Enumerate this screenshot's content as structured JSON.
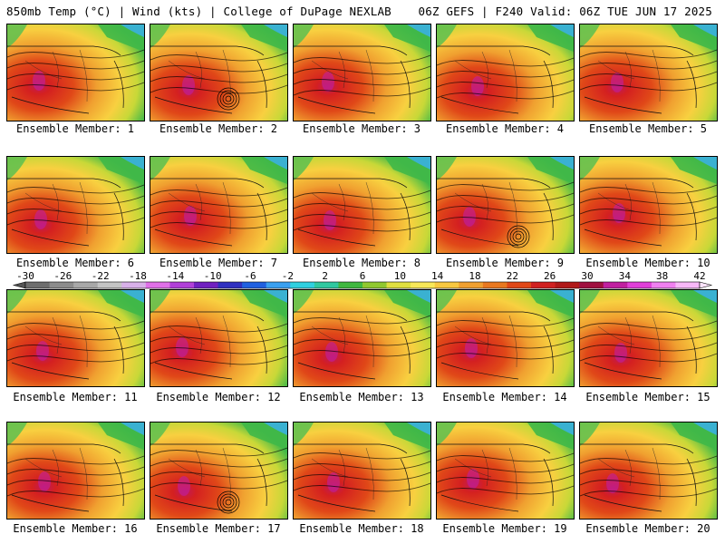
{
  "header": {
    "left": "850mb Temp (°C) | Wind (kts) | College of DuPage NEXLAB",
    "right": "06Z GEFS | F240 Valid: 06Z TUE JUN 17 2025"
  },
  "members": [
    "Ensemble Member: 1",
    "Ensemble Member: 2",
    "Ensemble Member: 3",
    "Ensemble Member: 4",
    "Ensemble Member: 5",
    "Ensemble Member: 6",
    "Ensemble Member: 7",
    "Ensemble Member: 8",
    "Ensemble Member: 9",
    "Ensemble Member: 10",
    "Ensemble Member: 11",
    "Ensemble Member: 12",
    "Ensemble Member: 13",
    "Ensemble Member: 14",
    "Ensemble Member: 15",
    "Ensemble Member: 16",
    "Ensemble Member: 17",
    "Ensemble Member: 18",
    "Ensemble Member: 19",
    "Ensemble Member: 20"
  ],
  "colorbar": {
    "labels": [
      "-30",
      "-26",
      "-22",
      "-18",
      "-14",
      "-10",
      "-6",
      "-2",
      "2",
      "6",
      "10",
      "14",
      "18",
      "22",
      "26",
      "30",
      "34",
      "38",
      "42"
    ],
    "colors": [
      "#6e6e6e",
      "#8c8c8c",
      "#a8a8a8",
      "#c4c4c4",
      "#d8b0e8",
      "#e070e8",
      "#b040d8",
      "#7020c0",
      "#3030c0",
      "#2060e0",
      "#3aa0f0",
      "#30d0e0",
      "#30c8a0",
      "#40b840",
      "#90c830",
      "#e0e040",
      "#f8e858",
      "#f8c840",
      "#f0a030",
      "#e87820",
      "#e04818",
      "#d02020",
      "#b01818",
      "#a01040",
      "#c020a0",
      "#e040d8",
      "#f080f0",
      "#f8b8f8"
    ]
  }
}
